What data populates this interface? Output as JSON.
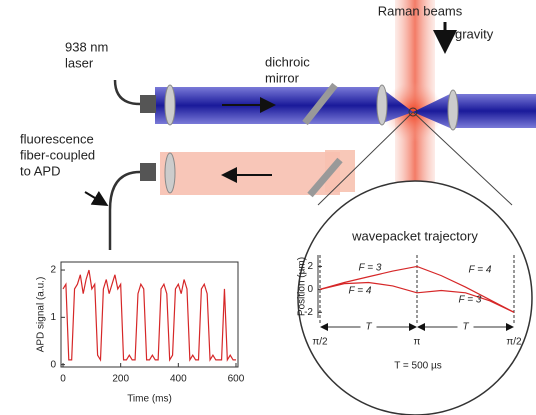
{
  "labels": {
    "laser": [
      "938 nm",
      "laser"
    ],
    "mirror": [
      "dichroic",
      "mirror"
    ],
    "fiber": [
      "fluorescence",
      "fiber-coupled",
      "to APD"
    ],
    "raman": "Raman beams",
    "gravity": "gravity"
  },
  "chart_data": [
    {
      "type": "line",
      "xlabel": "Time (ms)",
      "ylabel": "APD signal (a.u.)",
      "x": [
        0,
        10,
        20,
        30,
        40,
        50,
        60,
        70,
        80,
        90,
        100,
        110,
        120,
        130,
        140,
        150,
        160,
        170,
        180,
        190,
        200,
        210,
        220,
        230,
        240,
        250,
        260,
        270,
        280,
        290,
        300,
        310,
        320,
        330,
        340,
        350,
        360,
        370,
        380,
        390,
        400,
        410,
        420,
        430,
        440,
        450,
        460,
        470,
        480,
        490,
        500,
        510,
        520,
        530,
        540,
        550,
        560,
        570,
        580,
        590,
        600
      ],
      "series": [
        {
          "color": "#d62728",
          "values": [
            1.6,
            1.7,
            0.1,
            0.1,
            1.6,
            1.7,
            1.9,
            1.5,
            1.8,
            2.0,
            1.6,
            1.7,
            0.2,
            0.1,
            1.6,
            1.8,
            1.5,
            1.7,
            1.9,
            1.6,
            1.7,
            0.1,
            0.1,
            0.2,
            0.1,
            0.1,
            1.5,
            1.7,
            1.6,
            0.1,
            0.1,
            0.2,
            0.1,
            0.1,
            1.6,
            1.7,
            1.5,
            0.1,
            0.2,
            1.6,
            1.7,
            1.5,
            1.8,
            1.6,
            0.1,
            0.2,
            0.1,
            0.1,
            1.6,
            1.7,
            1.5,
            0.1,
            0.2,
            0.1,
            0.1,
            0.1,
            1.6,
            0.1,
            0.2,
            0.1,
            0.1
          ]
        }
      ],
      "xlim": [
        -7,
        607
      ],
      "xticks": [
        0,
        200,
        400,
        600
      ],
      "ylim": [
        -0.05,
        2.17
      ],
      "yticks": [
        0,
        1,
        2
      ]
    },
    {
      "type": "line",
      "title": "wavepacket trajectory",
      "ylabel": "Position (µm)",
      "categories": [
        "π/2",
        null,
        null,
        null,
        "π",
        null,
        null,
        null,
        "π/2"
      ],
      "series": [
        {
          "color": "#d62728",
          "values": [
            0,
            0.6,
            1.1,
            1.6,
            2.0,
            1.2,
            0.2,
            -0.9,
            -2
          ]
        },
        {
          "color": "#d62728",
          "values": [
            0,
            0.5,
            0.6,
            0.3,
            -0.3,
            -0.1,
            -0.3,
            -1.0,
            -2
          ]
        }
      ],
      "ylim": [
        -2.5,
        3
      ],
      "yticks": [
        -2,
        0,
        2
      ],
      "annotations": [
        "F = 3",
        "F = 4",
        "F = 4",
        "F = 3"
      ],
      "periods": [
        "T",
        "T"
      ],
      "caption": "T = 500 µs"
    }
  ]
}
